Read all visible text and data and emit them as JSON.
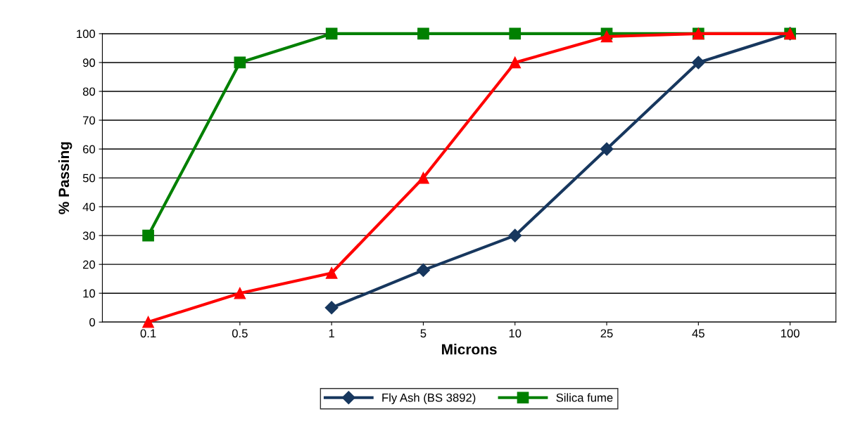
{
  "chart_data": {
    "type": "line",
    "xlabel": "Microns",
    "ylabel": "% Passing",
    "categories": [
      "0.1",
      "0.5",
      "1",
      "5",
      "10",
      "25",
      "45",
      "100"
    ],
    "series": [
      {
        "name": "Fly Ash (BS 3892)",
        "color": "#17375e",
        "marker": "diamond",
        "values": [
          null,
          null,
          5,
          18,
          30,
          60,
          90,
          100
        ]
      },
      {
        "name": "Silica fume",
        "color": "#008000",
        "marker": "square",
        "values": [
          30,
          90,
          100,
          100,
          100,
          100,
          100,
          100
        ]
      },
      {
        "color": "#ff0000",
        "marker": "triangle",
        "values": [
          0,
          10,
          17,
          50,
          90,
          99,
          100,
          100
        ]
      }
    ],
    "ylim": [
      0,
      100
    ],
    "yticks": [
      0,
      10,
      20,
      30,
      40,
      50,
      60,
      70,
      80,
      90,
      100
    ],
    "grid": "y",
    "legend": "bottom",
    "line_style": "solid"
  }
}
